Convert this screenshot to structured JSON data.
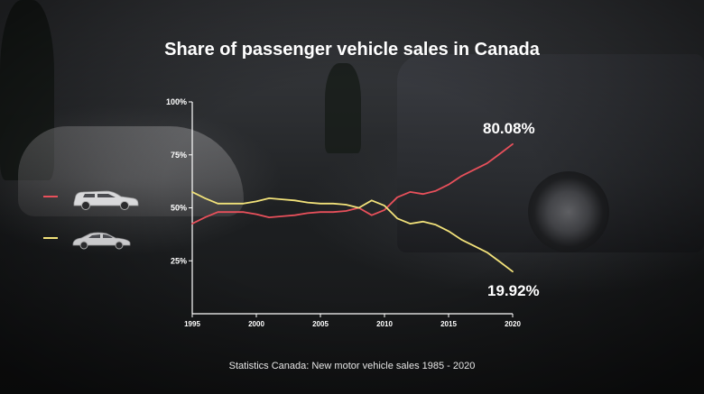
{
  "title": "Share of passenger vehicle sales in Canada",
  "source": "Statistics Canada: New motor vehicle sales 1985 - 2020",
  "end_labels": {
    "trucks": "80.08%",
    "cars": "19.92%"
  },
  "legend": [
    {
      "icon": "suv-icon",
      "color": "#e8505b"
    },
    {
      "icon": "sedan-icon",
      "color": "#f2e27a"
    }
  ],
  "chart_data": {
    "type": "line",
    "title": "Share of passenger vehicle sales in Canada",
    "xlim": [
      1995,
      2020
    ],
    "ylim": [
      0,
      100
    ],
    "x_ticks": [
      "1995",
      "2000",
      "2005",
      "2010",
      "2015",
      "2020"
    ],
    "y_ticks": [
      "25%",
      "50%",
      "75%",
      "100%"
    ],
    "x": [
      1995,
      1996,
      1997,
      1998,
      1999,
      2000,
      2001,
      2002,
      2003,
      2004,
      2005,
      2006,
      2007,
      2008,
      2009,
      2010,
      2011,
      2012,
      2013,
      2014,
      2015,
      2016,
      2017,
      2018,
      2019,
      2020
    ],
    "series": [
      {
        "icon": "suv-icon",
        "color": "#e8505b",
        "values": [
          42.5,
          45.5,
          48,
          48,
          48,
          47,
          45.5,
          46,
          46.5,
          47.5,
          48,
          48,
          48.5,
          50,
          46.5,
          49,
          55,
          57.5,
          56.5,
          58,
          61,
          65,
          68,
          71,
          75.5,
          80.08
        ]
      },
      {
        "icon": "sedan-icon",
        "color": "#f2e27a",
        "values": [
          57.5,
          54.5,
          52,
          52,
          52,
          53,
          54.5,
          54,
          53.5,
          52.5,
          52,
          52,
          51.5,
          50,
          53.5,
          51,
          45,
          42.5,
          43.5,
          42,
          39,
          35,
          32,
          29,
          24.5,
          19.92
        ]
      }
    ],
    "grid": false
  }
}
